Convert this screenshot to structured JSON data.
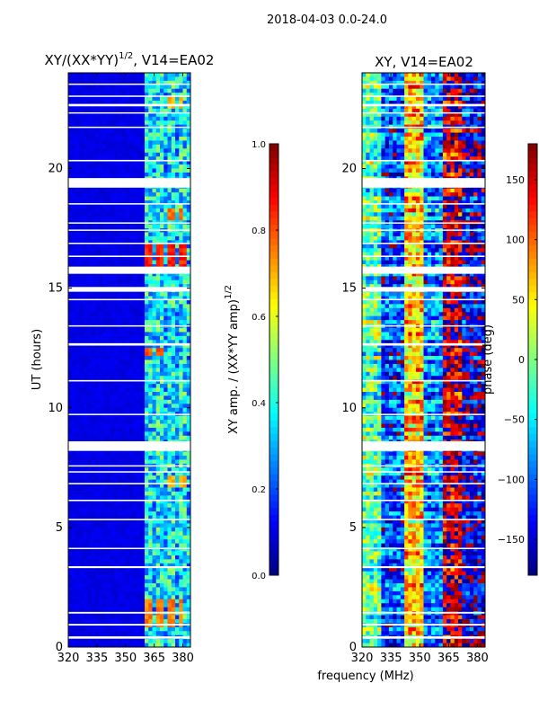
{
  "figure": {
    "suptitle": "2018-04-03 0.0-24.0",
    "shared_xlabel": "frequency (MHz)"
  },
  "colors": {
    "background": "#ffffff",
    "frame": "#000000",
    "colormap": "jet",
    "flag_gap": "#ffffff"
  },
  "chart_data": [
    {
      "type": "heatmap",
      "title_base": "XY/(XX*YY)",
      "title_exponent": "1/2",
      "title_suffix": ", V14=EA02",
      "xlabel": "",
      "ylabel": "UT (hours)",
      "xlim": [
        320,
        384
      ],
      "ylim": [
        0,
        24
      ],
      "xticks": [
        320,
        335,
        350,
        365,
        380
      ],
      "xtick_labels": [
        "320",
        "335",
        "350",
        "365",
        "380"
      ],
      "yticks": [
        0,
        5,
        10,
        15,
        20
      ],
      "ytick_labels": [
        "0",
        "5",
        "10",
        "15",
        "20"
      ],
      "colorbar": {
        "label_base": "XY amp. / (XX*YY amp)",
        "label_exponent": "1/2",
        "vmin": 0.0,
        "vmax": 1.0,
        "ticks": [
          0.0,
          0.2,
          0.4,
          0.6,
          0.8,
          1.0
        ],
        "tick_labels": [
          "0.0",
          "0.2",
          "0.4",
          "0.6",
          "0.8",
          "1.0"
        ]
      },
      "flagged_ut_ranges": [
        [
          0.35,
          0.45
        ],
        [
          0.9,
          0.97
        ],
        [
          1.4,
          1.47
        ],
        [
          3.3,
          3.38
        ],
        [
          4.1,
          4.15
        ],
        [
          5.3,
          5.36
        ],
        [
          6.1,
          6.16
        ],
        [
          6.8,
          6.86
        ],
        [
          7.3,
          7.35
        ],
        [
          7.55,
          7.6
        ],
        [
          8.2,
          8.6
        ],
        [
          9.7,
          9.75
        ],
        [
          11.1,
          11.16
        ],
        [
          12.6,
          12.7
        ],
        [
          13.4,
          13.45
        ],
        [
          14.5,
          14.55
        ],
        [
          14.85,
          15.05
        ],
        [
          15.6,
          15.9
        ],
        [
          16.3,
          16.36
        ],
        [
          16.85,
          16.9
        ],
        [
          17.4,
          17.45
        ],
        [
          17.7,
          17.75
        ],
        [
          18.5,
          18.55
        ],
        [
          19.2,
          19.6
        ],
        [
          20.3,
          20.36
        ],
        [
          21.7,
          21.75
        ],
        [
          22.3,
          22.35
        ],
        [
          22.6,
          22.7
        ],
        [
          23.0,
          23.05
        ],
        [
          23.5,
          23.55
        ]
      ],
      "active_band_mhz": [
        361,
        384
      ],
      "quiet_amplitude": 0.08,
      "active_amplitude_range": [
        0.2,
        0.55
      ],
      "hot_spots": [
        {
          "ut": [
            15.8,
            16.8
          ],
          "mhz": [
            361,
            383
          ],
          "amp": 0.85
        },
        {
          "ut": [
            0.8,
            2.0
          ],
          "mhz": [
            361,
            380
          ],
          "amp": 0.75
        },
        {
          "ut": [
            6.6,
            7.2
          ],
          "mhz": [
            370,
            383
          ],
          "amp": 0.7
        },
        {
          "ut": [
            12.2,
            12.5
          ],
          "mhz": [
            361,
            370
          ],
          "amp": 0.8
        },
        {
          "ut": [
            17.9,
            18.3
          ],
          "mhz": [
            370,
            380
          ],
          "amp": 0.75
        },
        {
          "ut": [
            22.5,
            23.0
          ],
          "mhz": [
            370,
            380
          ],
          "amp": 0.7
        }
      ]
    },
    {
      "type": "heatmap",
      "title": "XY, V14=EA02",
      "xlabel": "frequency (MHz)",
      "ylabel": "",
      "xlim": [
        320,
        384
      ],
      "ylim": [
        0,
        24
      ],
      "xticks": [
        320,
        335,
        350,
        365,
        380
      ],
      "xtick_labels": [
        "320",
        "335",
        "350",
        "365",
        "380"
      ],
      "yticks": [
        0,
        5,
        10,
        15,
        20
      ],
      "ytick_labels": [
        "0",
        "5",
        "10",
        "15",
        "20"
      ],
      "colorbar": {
        "label": "phase (deg)",
        "vmin": -180,
        "vmax": 180,
        "ticks": [
          -150,
          -100,
          -50,
          0,
          50,
          100,
          150
        ],
        "tick_labels": [
          "−150",
          "−100",
          "−50",
          "0",
          "50",
          "100",
          "150"
        ]
      },
      "flagged_ut_ranges": [
        [
          0.35,
          0.45
        ],
        [
          0.9,
          0.97
        ],
        [
          1.4,
          1.47
        ],
        [
          3.3,
          3.38
        ],
        [
          4.1,
          4.15
        ],
        [
          5.3,
          5.36
        ],
        [
          6.1,
          6.16
        ],
        [
          6.8,
          6.86
        ],
        [
          7.3,
          7.35
        ],
        [
          7.55,
          7.6
        ],
        [
          8.2,
          8.6
        ],
        [
          9.7,
          9.75
        ],
        [
          11.1,
          11.16
        ],
        [
          12.6,
          12.7
        ],
        [
          13.4,
          13.45
        ],
        [
          14.5,
          14.55
        ],
        [
          14.85,
          15.05
        ],
        [
          15.6,
          15.9
        ],
        [
          16.3,
          16.36
        ],
        [
          16.85,
          16.9
        ],
        [
          17.4,
          17.45
        ],
        [
          17.7,
          17.75
        ],
        [
          18.5,
          18.55
        ],
        [
          19.2,
          19.6
        ],
        [
          20.3,
          20.36
        ],
        [
          21.7,
          21.75
        ],
        [
          22.3,
          22.35
        ],
        [
          22.6,
          22.7
        ],
        [
          23.0,
          23.05
        ],
        [
          23.5,
          23.55
        ]
      ],
      "phase_bands": [
        {
          "mhz": [
            320,
            330
          ],
          "deg": -20
        },
        {
          "mhz": [
            330,
            342
          ],
          "deg": -110
        },
        {
          "mhz": [
            342,
            352
          ],
          "deg": 60
        },
        {
          "mhz": [
            352,
            362
          ],
          "deg": -90
        },
        {
          "mhz": [
            362,
            372
          ],
          "deg": 150
        },
        {
          "mhz": [
            372,
            384
          ],
          "deg": -150
        }
      ]
    }
  ]
}
